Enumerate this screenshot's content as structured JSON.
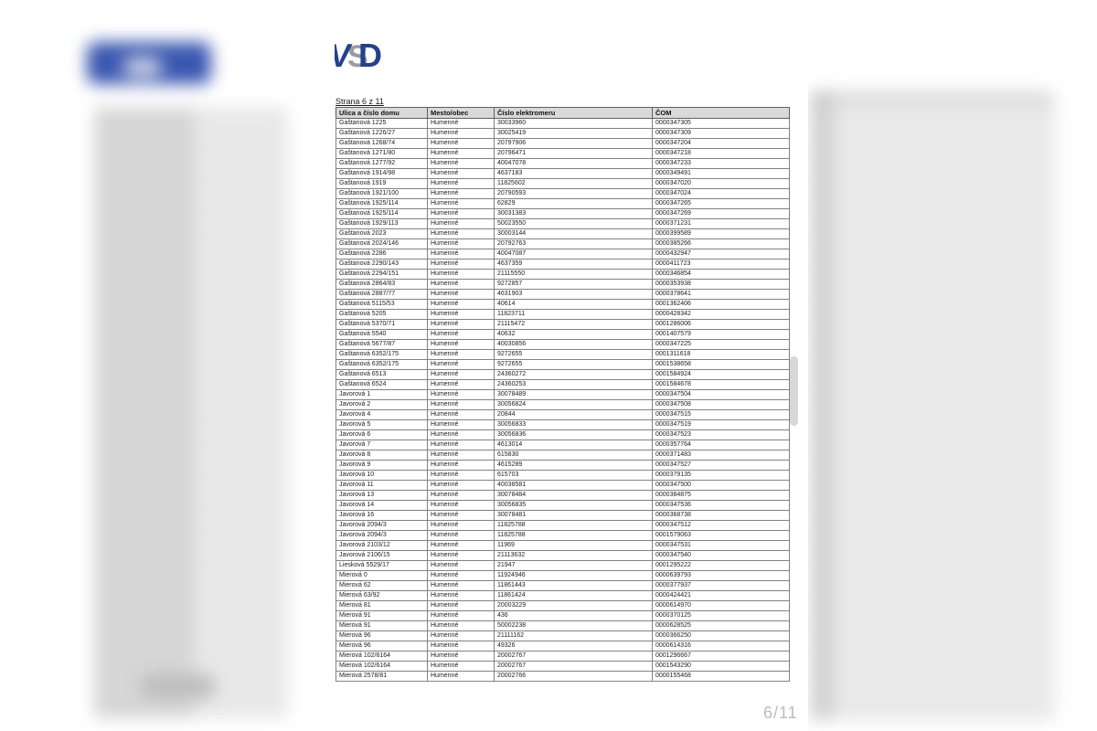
{
  "viewer": {
    "page_indicator": "6/11"
  },
  "document": {
    "logo_text": "VSD",
    "page_label": "Strana 6 z 11"
  },
  "colors": {
    "logo_navy": "#24418e",
    "logo_gray": "#9b9b9b",
    "table_header_bg": "#d9d9d9",
    "table_border": "#828282",
    "page_indicator_gray": "#bcbcbc"
  },
  "table": {
    "headers": [
      "Ulica a číslo domu",
      "Mesto/obec",
      "Číslo elektromeru",
      "ČOM"
    ],
    "rows": [
      [
        "Gaštanová 1225",
        "Humenné",
        "30033960",
        "0000347305"
      ],
      [
        "Gaštanová 1226/27",
        "Humenné",
        "30025419",
        "0000347309"
      ],
      [
        "Gaštanová 1268/74",
        "Humenné",
        "20797906",
        "0000347204"
      ],
      [
        "Gaštanová 1271/80",
        "Humenné",
        "20796471",
        "0000347218"
      ],
      [
        "Gaštanová 1277/92",
        "Humenné",
        "40047078",
        "0000347233"
      ],
      [
        "Gaštanová 1914/98",
        "Humenné",
        "4637183",
        "0000349491"
      ],
      [
        "Gaštanová 1919",
        "Humenné",
        "11825602",
        "0000347020"
      ],
      [
        "Gaštanová 1921/100",
        "Humenné",
        "20790593",
        "0000347024"
      ],
      [
        "Gaštanová 1925/114",
        "Humenné",
        "62829",
        "0000347265"
      ],
      [
        "Gaštanová 1925/114",
        "Humenné",
        "30031383",
        "0000347269"
      ],
      [
        "Gaštanová 1929/113",
        "Humenné",
        "50023550",
        "0000371231"
      ],
      [
        "Gaštanová 2023",
        "Humenné",
        "30003144",
        "0000399589"
      ],
      [
        "Gaštanová 2024/146",
        "Humenné",
        "20792763",
        "0000385266"
      ],
      [
        "Gaštanová 2286",
        "Humenné",
        "40047087",
        "0000432947"
      ],
      [
        "Gaštanová 2290/143",
        "Humenné",
        "4637359",
        "0000411723"
      ],
      [
        "Gaštanová 2294/151",
        "Humenné",
        "21115550",
        "0000346854"
      ],
      [
        "Gaštanová 2864/83",
        "Humenné",
        "9272857",
        "0000353938"
      ],
      [
        "Gaštanová 2887/77",
        "Humenné",
        "4631903",
        "0000378641"
      ],
      [
        "Gaštanová 5115/53",
        "Humenné",
        "40614",
        "0001362406"
      ],
      [
        "Gaštanová 5205",
        "Humenné",
        "11823711",
        "0000428342"
      ],
      [
        "Gaštanová 5370/71",
        "Humenné",
        "21115472",
        "0001286006"
      ],
      [
        "Gaštanová 5540",
        "Humenné",
        "40632",
        "0001407579"
      ],
      [
        "Gaštanová 5677/87",
        "Humenné",
        "40030856",
        "0000347225"
      ],
      [
        "Gaštanová 6352/175",
        "Humenné",
        "9272655",
        "0001311618"
      ],
      [
        "Gaštanová 6352/175",
        "Humenné",
        "9272655",
        "0001538658"
      ],
      [
        "Gaštanová 6513",
        "Humenné",
        "24360272",
        "0001584924"
      ],
      [
        "Gaštanová 6524",
        "Humenné",
        "24360253",
        "0001584678"
      ],
      [
        "Javorová 1",
        "Humenné",
        "30078489",
        "0000347504"
      ],
      [
        "Javorová 2",
        "Humenné",
        "30056824",
        "0000347508"
      ],
      [
        "Javorová 4",
        "Humenné",
        "20844",
        "0000347515"
      ],
      [
        "Javorová 5",
        "Humenné",
        "30056833",
        "0000347519"
      ],
      [
        "Javorová 6",
        "Humenné",
        "30056836",
        "0000347523"
      ],
      [
        "Javorová 7",
        "Humenné",
        "4613014",
        "0000357764"
      ],
      [
        "Javorová 8",
        "Humenné",
        "615830",
        "0000371483"
      ],
      [
        "Javorová 9",
        "Humenné",
        "4615289",
        "0000347527"
      ],
      [
        "Javorová 10",
        "Humenné",
        "615703",
        "0000379135"
      ],
      [
        "Javorová 11",
        "Humenné",
        "40038581",
        "0000347500"
      ],
      [
        "Javorová 13",
        "Humenné",
        "30078484",
        "0000384875"
      ],
      [
        "Javorová 14",
        "Humenné",
        "30056835",
        "0000347536"
      ],
      [
        "Javorová 16",
        "Humenné",
        "30078481",
        "0000368738"
      ],
      [
        "Javorová 2094/3",
        "Humenné",
        "11825788",
        "0000347512"
      ],
      [
        "Javorová 2094/3",
        "Humenné",
        "11825788",
        "0001579063"
      ],
      [
        "Javorová 2103/12",
        "Humenné",
        "11969",
        "0000347531"
      ],
      [
        "Javorová 2106/15",
        "Humenné",
        "21113632",
        "0000347540"
      ],
      [
        "Liesková 5529/17",
        "Humenné",
        "21947",
        "0001295222"
      ],
      [
        "Mierová 0",
        "Humenné",
        "11924946",
        "0000639793"
      ],
      [
        "Mierová 62",
        "Humenné",
        "11861443",
        "0000377937"
      ],
      [
        "Mierová 63/92",
        "Humenné",
        "11861424",
        "0000424421"
      ],
      [
        "Mierová 81",
        "Humenné",
        "20003229",
        "0000614970"
      ],
      [
        "Mierová 91",
        "Humenné",
        "436",
        "0000370125"
      ],
      [
        "Mierová 91",
        "Humenné",
        "50002238",
        "0000628525"
      ],
      [
        "Mierová 96",
        "Humenné",
        "21111162",
        "0000366250"
      ],
      [
        "Mierová 96",
        "Humenné",
        "49326",
        "0000614316"
      ],
      [
        "Mierová 102/6164",
        "Humenné",
        "20002767",
        "0001296667"
      ],
      [
        "Mierová 102/6164",
        "Humenné",
        "20002767",
        "0001543290"
      ],
      [
        "Mierová 2578/81",
        "Humenné",
        "20002766",
        "0000155468"
      ]
    ]
  }
}
